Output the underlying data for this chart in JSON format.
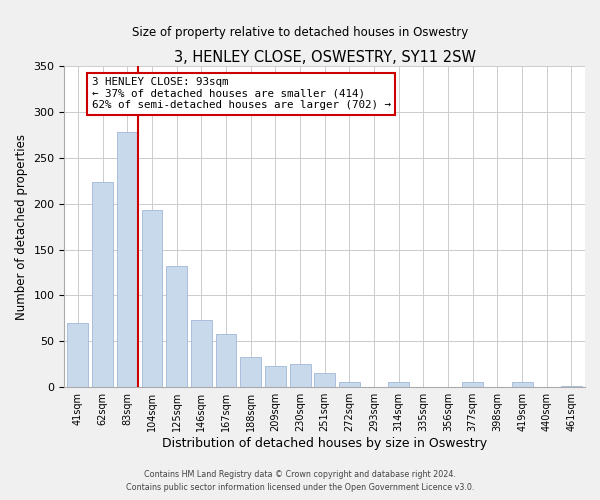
{
  "title": "3, HENLEY CLOSE, OSWESTRY, SY11 2SW",
  "subtitle": "Size of property relative to detached houses in Oswestry",
  "xlabel": "Distribution of detached houses by size in Oswestry",
  "ylabel": "Number of detached properties",
  "bar_labels": [
    "41sqm",
    "62sqm",
    "83sqm",
    "104sqm",
    "125sqm",
    "146sqm",
    "167sqm",
    "188sqm",
    "209sqm",
    "230sqm",
    "251sqm",
    "272sqm",
    "293sqm",
    "314sqm",
    "335sqm",
    "356sqm",
    "377sqm",
    "398sqm",
    "419sqm",
    "440sqm",
    "461sqm"
  ],
  "bar_values": [
    70,
    224,
    278,
    193,
    132,
    73,
    58,
    33,
    23,
    25,
    15,
    5,
    0,
    6,
    0,
    0,
    5,
    0,
    5,
    0,
    1
  ],
  "bar_color": "#c9d9ec",
  "bar_edge_color": "#a0b8d8",
  "vline_color": "#cc0000",
  "annotation_title": "3 HENLEY CLOSE: 93sqm",
  "annotation_line1": "← 37% of detached houses are smaller (414)",
  "annotation_line2": "62% of semi-detached houses are larger (702) →",
  "annotation_box_color": "white",
  "annotation_box_edge": "#cc0000",
  "ylim": [
    0,
    350
  ],
  "yticks": [
    0,
    50,
    100,
    150,
    200,
    250,
    300,
    350
  ],
  "footer1": "Contains HM Land Registry data © Crown copyright and database right 2024.",
  "footer2": "Contains public sector information licensed under the Open Government Licence v3.0.",
  "bg_color": "#f0f0f0",
  "plot_bg_color": "#ffffff"
}
